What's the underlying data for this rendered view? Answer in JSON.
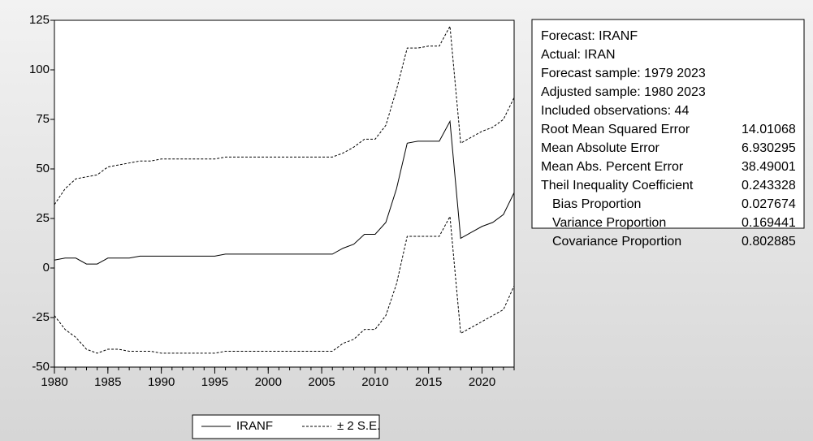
{
  "chart_data": {
    "type": "line",
    "x": [
      1980,
      1981,
      1982,
      1983,
      1984,
      1985,
      1986,
      1987,
      1988,
      1989,
      1990,
      1991,
      1992,
      1993,
      1994,
      1995,
      1996,
      1997,
      1998,
      1999,
      2000,
      2001,
      2002,
      2003,
      2004,
      2005,
      2006,
      2007,
      2008,
      2009,
      2010,
      2011,
      2012,
      2013,
      2014,
      2015,
      2016,
      2017,
      2018,
      2019,
      2020,
      2021,
      2022,
      2023
    ],
    "series": [
      {
        "name": "IRANF",
        "color": "#000000",
        "dash": false,
        "values": [
          4,
          5,
          5,
          2,
          2,
          5,
          5,
          5,
          6,
          6,
          6,
          6,
          6,
          6,
          6,
          6,
          7,
          7,
          7,
          7,
          7,
          7,
          7,
          7,
          7,
          7,
          7,
          10,
          12,
          17,
          17,
          23,
          40,
          63,
          64,
          64,
          64,
          74,
          15,
          18,
          21,
          23,
          27,
          38
        ]
      },
      {
        "name": "± 2 S.E.",
        "color": "#000000",
        "dash": true,
        "values": [
          32,
          40,
          45,
          46,
          47,
          51,
          52,
          53,
          54,
          54,
          55,
          55,
          55,
          55,
          55,
          55,
          56,
          56,
          56,
          56,
          56,
          56,
          56,
          56,
          56,
          56,
          56,
          58,
          61,
          65,
          65,
          72,
          90,
          111,
          111,
          112,
          112,
          122,
          63,
          66,
          69,
          71,
          75,
          86
        ]
      },
      {
        "name": "± 2 S.E.",
        "color": "#000000",
        "dash": true,
        "values": [
          -24,
          -31,
          -35,
          -41,
          -43,
          -41,
          -41,
          -42,
          -42,
          -42,
          -43,
          -43,
          -43,
          -43,
          -43,
          -43,
          -42,
          -42,
          -42,
          -42,
          -42,
          -42,
          -42,
          -42,
          -42,
          -42,
          -42,
          -38,
          -36,
          -31,
          -31,
          -24,
          -8,
          16,
          16,
          16,
          16,
          26,
          -33,
          -30,
          -27,
          -24,
          -21,
          -9
        ]
      }
    ],
    "xlim": [
      1980,
      2023
    ],
    "xticks": [
      1980,
      1985,
      1990,
      1995,
      2000,
      2005,
      2010,
      2015,
      2020
    ],
    "ylim": [
      -50,
      125
    ],
    "yticks": [
      -50,
      -25,
      0,
      25,
      50,
      75,
      100,
      125
    ],
    "legend": "bottom",
    "stats": {
      "lines": [
        "Forecast: IRANF",
        "Actual: IRAN",
        "Forecast sample: 1979 2023",
        "Adjusted sample: 1980 2023",
        "Included observations: 44"
      ],
      "rows": [
        [
          "Root Mean Squared Error",
          14.01068
        ],
        [
          "Mean Absolute Error",
          6.930295
        ],
        [
          "Mean Abs. Percent Error",
          38.49001
        ],
        [
          "Theil Inequality Coefficient",
          0.243328
        ],
        [
          "Bias Proportion",
          0.027674
        ],
        [
          "Variance Proportion",
          0.169441
        ],
        [
          "Covariance Proportion",
          0.802885
        ]
      ]
    }
  }
}
